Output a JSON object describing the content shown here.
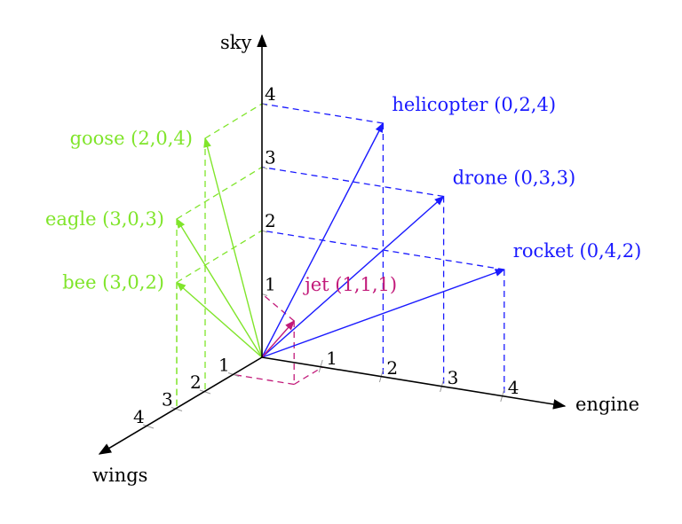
{
  "axes": {
    "sky": "sky",
    "engine": "engine",
    "wings": "wings"
  },
  "ticks": {
    "sky": [
      "1",
      "2",
      "3",
      "4"
    ],
    "engine": [
      "1",
      "2",
      "3",
      "4"
    ],
    "wings": [
      "1",
      "2",
      "3",
      "4"
    ]
  },
  "colors": {
    "axis": "#000000",
    "vehicle": "#1a1aff",
    "animal": "#80e52b",
    "jet": "#c21a7a"
  },
  "vehicles": [
    {
      "name": "helicopter",
      "label": "helicopter (0,2,4)",
      "wings": 0,
      "engine": 2,
      "sky": 4,
      "group": "vehicle"
    },
    {
      "name": "drone",
      "label": "drone (0,3,3)",
      "wings": 0,
      "engine": 3,
      "sky": 3,
      "group": "vehicle"
    },
    {
      "name": "rocket",
      "label": "rocket (0,4,2)",
      "wings": 0,
      "engine": 4,
      "sky": 2,
      "group": "vehicle"
    },
    {
      "name": "goose",
      "label": "goose (2,0,4)",
      "wings": 2,
      "engine": 0,
      "sky": 4,
      "group": "animal"
    },
    {
      "name": "eagle",
      "label": "eagle (3,0,3)",
      "wings": 3,
      "engine": 0,
      "sky": 3,
      "group": "animal"
    },
    {
      "name": "bee",
      "label": "bee (3,0,2)",
      "wings": 3,
      "engine": 0,
      "sky": 2,
      "group": "animal"
    },
    {
      "name": "jet",
      "label": "jet (1,1,1)",
      "wings": 1,
      "engine": 1,
      "sky": 1,
      "group": "jet"
    }
  ]
}
